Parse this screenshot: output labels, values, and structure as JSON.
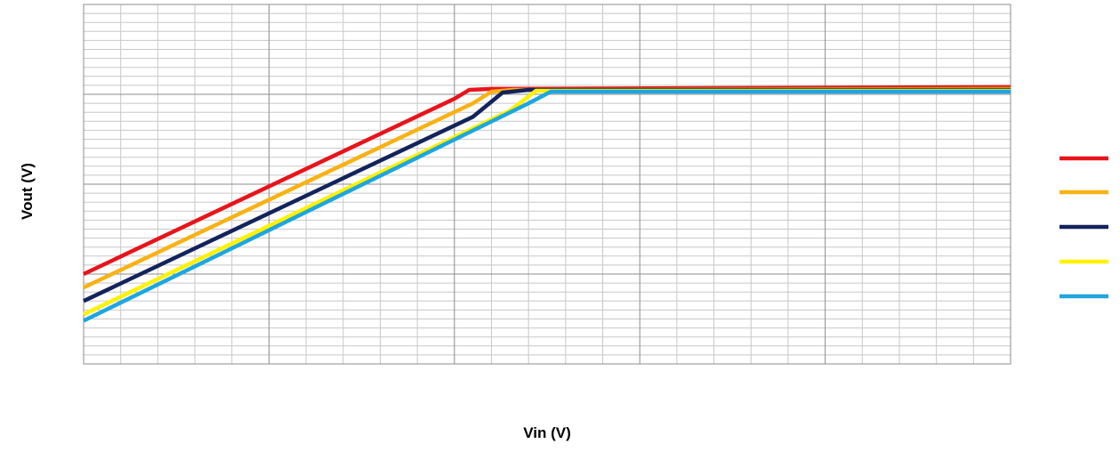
{
  "chart_data": {
    "type": "line",
    "title": "",
    "xlabel": "Vin (V)",
    "ylabel": "Vout (V)",
    "x_tick_labels": [],
    "y_tick_labels": [],
    "xlim": [
      0,
      25
    ],
    "ylim": [
      0,
      4
    ],
    "grid": {
      "major": true,
      "x_major_step": 5,
      "y_major_step": 1,
      "x_minor_step": 1,
      "y_minor_step": 0.1
    },
    "legend": {
      "position": "right",
      "labels_visible": false
    },
    "series": [
      {
        "color": "#e8141b",
        "x": [
          0,
          10.0,
          10.4,
          11.0,
          25
        ],
        "y": [
          1.0,
          2.95,
          3.05,
          3.06,
          3.08
        ]
      },
      {
        "color": "#f9b215",
        "x": [
          0,
          10.5,
          11.0,
          11.6,
          25
        ],
        "y": [
          0.85,
          2.9,
          3.03,
          3.05,
          3.06
        ]
      },
      {
        "color": "#13235b",
        "x": [
          0,
          10.5,
          11.3,
          12.0,
          25
        ],
        "y": [
          0.7,
          2.75,
          3.02,
          3.05,
          3.05
        ]
      },
      {
        "color": "#fff200",
        "x": [
          0,
          11.5,
          12.2,
          25
        ],
        "y": [
          0.55,
          2.82,
          3.04,
          3.04
        ]
      },
      {
        "color": "#1ea6e0",
        "x": [
          0,
          12.0,
          12.6,
          25
        ],
        "y": [
          0.48,
          2.9,
          3.03,
          3.03
        ]
      }
    ]
  }
}
